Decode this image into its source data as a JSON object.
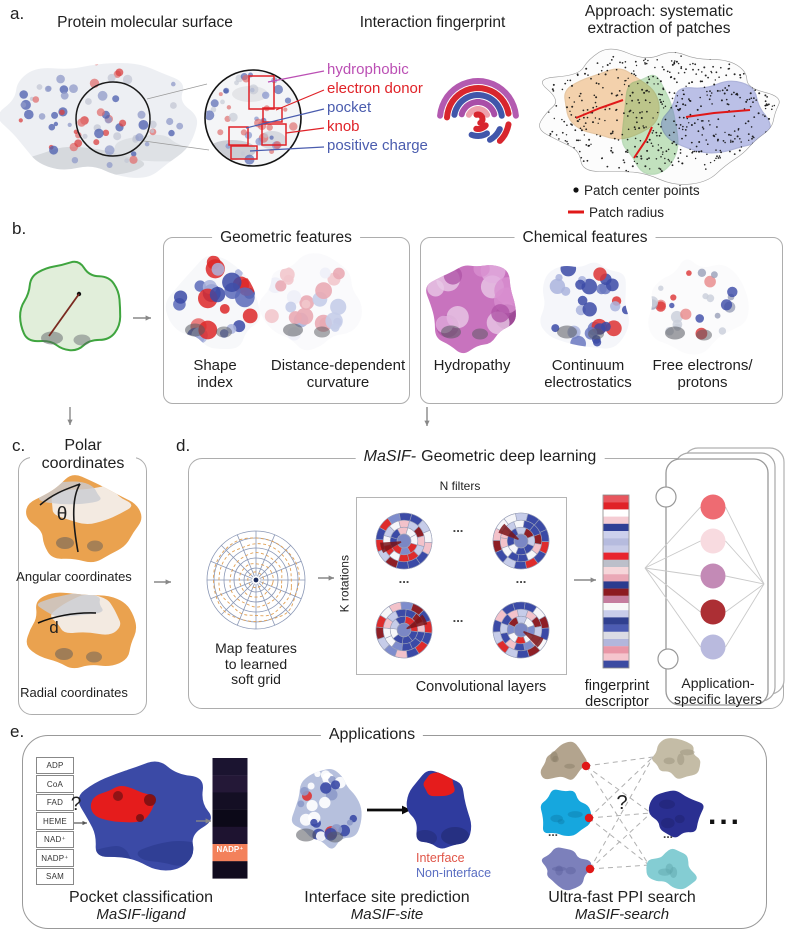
{
  "figure": {
    "panel_a": {
      "label": "a.",
      "surface_title": "Protein molecular surface",
      "fingerprint_title": "Interaction fingerprint",
      "approach_title": "Approach: systematic extraction of patches",
      "annotations": [
        {
          "label": "hydrophobic",
          "color": "#bb4fb4"
        },
        {
          "label": "electron donor",
          "color": "#e02228"
        },
        {
          "label": "pocket",
          "color": "#4a5cae"
        },
        {
          "label": "knob",
          "color": "#e02228"
        },
        {
          "label": "positive charge",
          "color": "#4a5cae"
        }
      ],
      "legend_points": "Patch center points",
      "legend_radius": "Patch radius",
      "patch_colors": {
        "orange": "#e8973f",
        "green": "#58b04c",
        "blue": "#5a68c8"
      }
    },
    "panel_b": {
      "label": "b.",
      "geometric_title": "Geometric features",
      "geometric_items": [
        "Shape index",
        "Distance-dependent curvature"
      ],
      "chemical_title": "Chemical features",
      "chemical_items": [
        "Hydropathy",
        "Continuum electrostatics",
        "Free electrons/ protons"
      ]
    },
    "panel_c": {
      "label": "c.",
      "title": "Polar coordinates",
      "theta_symbol": "θ",
      "angular_caption": "Angular coordinates",
      "d_symbol": "d",
      "radial_caption": "Radial coordinates"
    },
    "panel_d": {
      "label": "d.",
      "title_method": "MaSIF-",
      "title_rest": "Geometric deep learning",
      "n_filters": "N filters",
      "k_rotations": "K rotations",
      "map_caption": "Map features to learned soft grid",
      "conv_caption": "Convolutional layers",
      "ellipsis": "...",
      "descriptor_caption": "fingerprint descriptor",
      "app_layers_caption": "Application-specific layers",
      "descriptor_colors": [
        "#e8565e",
        "#e02227",
        "#ffffff",
        "#f5ccd3",
        "#2f3f95",
        "#ccd0ec",
        "#b6bbde",
        "#c8cbe7",
        "#e8252f",
        "#bcbfca",
        "#f6d6da",
        "#eaa8b6",
        "#2b3b8f",
        "#8c1b21",
        "#c57d9e",
        "#f8f8f8",
        "#c9cdea",
        "#31408f",
        "#4d5cb2",
        "#dcdce4",
        "#b2b6dc",
        "#e996a6",
        "#f5c5cd",
        "#3c4ba2"
      ],
      "node_colors": [
        "#ee6b72",
        "#f8dbe0",
        "#c38ab6",
        "#ac2f34",
        "#b9bade"
      ]
    },
    "panel_e": {
      "label": "e.",
      "title": "Applications",
      "ligand": {
        "options": [
          "ADP",
          "CoA",
          "FAD",
          "HEME",
          "NAD⁺",
          "NADP⁺",
          "SAM"
        ],
        "question_mark": "?",
        "heatmap_colors": [
          "#1b1430",
          "#241837",
          "#140f24",
          "#0c0918",
          "#1e1330",
          "#f3815b",
          "#100b1e"
        ],
        "predicted_label": "NADP⁺",
        "caption": "Pocket classification",
        "method": "MaSIF-ligand"
      },
      "site": {
        "interface_label": "Interface",
        "interface_color": "#e05548",
        "noninterface_label": "Non-interface",
        "noninterface_color": "#5a6ec2",
        "caption": "Interface site prediction",
        "method": "MaSIF-site"
      },
      "search": {
        "question_mark": "?",
        "ellipsis": "...",
        "caption": "Ultra-fast PPI search",
        "method": "MaSIF-search"
      }
    }
  }
}
